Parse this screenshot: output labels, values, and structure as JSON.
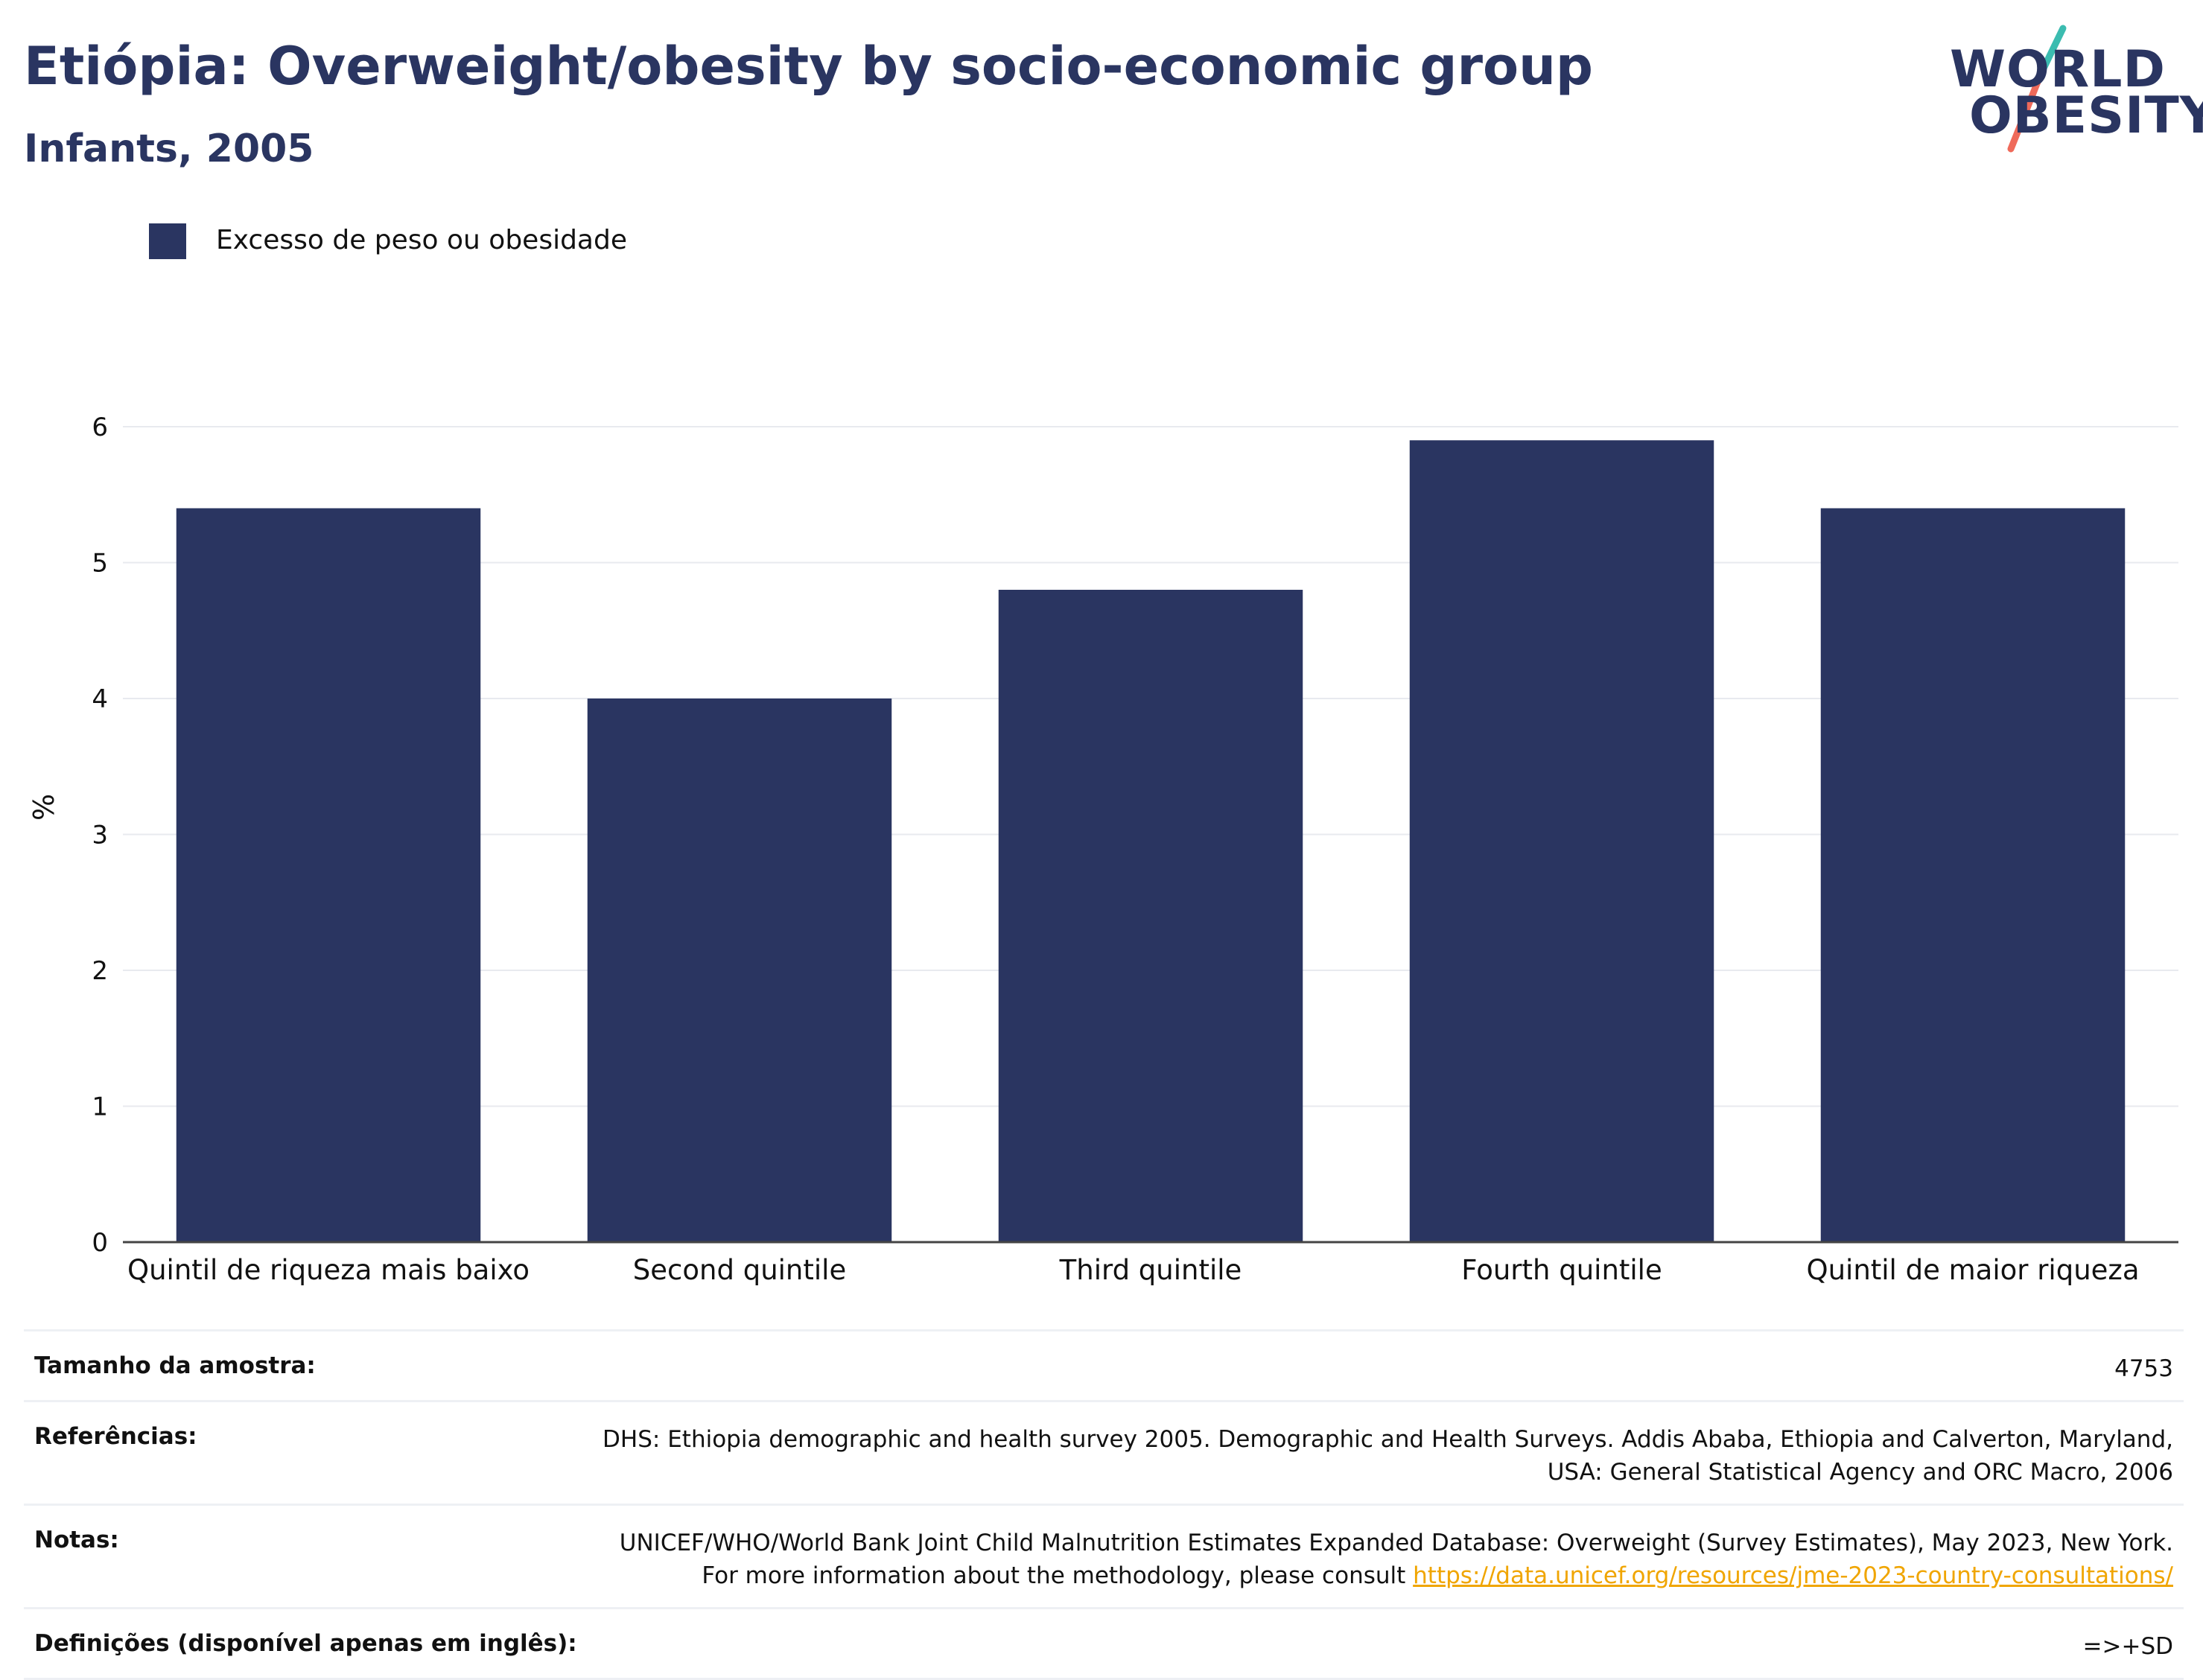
{
  "header": {
    "title": "Etiópia: Overweight/obesity by socio-economic group",
    "subtitle": "Infants, 2005"
  },
  "logo": {
    "line1": "WORLD",
    "line2": "OBESITY",
    "colors": {
      "text": "#2a3561",
      "slash_top": "#3bbcb0",
      "slash_bottom": "#ef6a5a"
    }
  },
  "legend": {
    "label": "Excesso de peso ou obesidade",
    "color": "#2a3561"
  },
  "chart_data": {
    "type": "bar",
    "categories": [
      "Quintil de riqueza mais baixo",
      "Second quintile",
      "Third quintile",
      "Fourth quintile",
      "Quintil de maior riqueza"
    ],
    "series": [
      {
        "name": "Excesso de peso ou obesidade",
        "values": [
          5.4,
          4.0,
          4.8,
          5.9,
          5.4
        ],
        "color": "#2a3561"
      }
    ],
    "ylabel": "%",
    "ylim": [
      0,
      6.4
    ],
    "yticks": [
      0,
      1,
      2,
      3,
      4,
      5,
      6
    ],
    "grid": true,
    "legend_position": "top-left"
  },
  "info": {
    "sample_size": {
      "label": "Tamanho da amostra:",
      "value": "4753"
    },
    "references": {
      "label": "Referências:",
      "value": "DHS: Ethiopia demographic and health survey 2005. Demographic and Health Surveys. Addis Ababa, Ethiopia and Calverton, Maryland, USA: General Statistical Agency and ORC Macro, 2006"
    },
    "notes": {
      "label": "Notas:",
      "value": "UNICEF/WHO/World Bank Joint Child Malnutrition Estimates Expanded Database: Overweight (Survey Estimates), May 2023, New York. For more information about the methodology, please consult",
      "link": "https://data.unicef.org/resources/jme-2023-country-consultations/"
    },
    "definitions": {
      "label": "Definições (disponível apenas em inglês):",
      "value": "=>+SD"
    }
  }
}
